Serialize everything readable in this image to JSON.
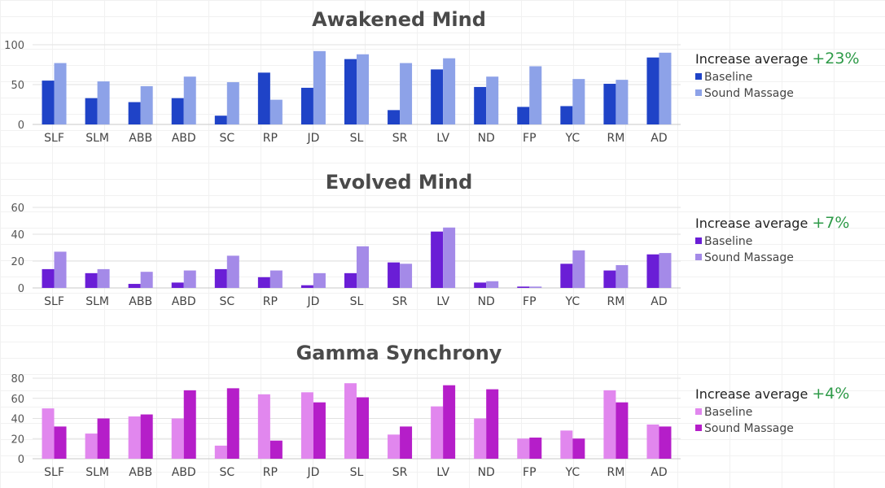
{
  "chart_data": [
    {
      "type": "bar",
      "title": "Awakened Mind",
      "categories": [
        "SLF",
        "SLM",
        "ABB",
        "ABD",
        "SC",
        "RP",
        "JD",
        "SL",
        "SR",
        "LV",
        "ND",
        "FP",
        "YC",
        "RM",
        "AD"
      ],
      "yticks": [
        0,
        50,
        100
      ],
      "ylim": [
        0,
        100
      ],
      "grid": true,
      "legend_position": "right",
      "series": [
        {
          "name": "Baseline",
          "color": "#1f43c7",
          "values": [
            55,
            33,
            28,
            33,
            11,
            65,
            46,
            82,
            18,
            69,
            47,
            22,
            23,
            51,
            84
          ]
        },
        {
          "name": "Sound Massage",
          "color": "#8da2e8",
          "values": [
            77,
            54,
            48,
            60,
            53,
            31,
            92,
            88,
            77,
            83,
            60,
            73,
            57,
            56,
            90
          ]
        }
      ],
      "annotation": {
        "label": "Increase average",
        "value": "+23%"
      }
    },
    {
      "type": "bar",
      "title": "Evolved Mind",
      "categories": [
        "SLF",
        "SLM",
        "ABB",
        "ABD",
        "SC",
        "RP",
        "JD",
        "SL",
        "SR",
        "LV",
        "ND",
        "FP",
        "YC",
        "RM",
        "AD"
      ],
      "yticks": [
        0,
        20,
        40,
        60
      ],
      "ylim": [
        0,
        60
      ],
      "grid": true,
      "legend_position": "right",
      "series": [
        {
          "name": "Baseline",
          "color": "#6a1ed6",
          "values": [
            14,
            11,
            3,
            4,
            14,
            8,
            2,
            11,
            19,
            42,
            4,
            1,
            18,
            13,
            25
          ]
        },
        {
          "name": "Sound Massage",
          "color": "#a48ae8",
          "values": [
            27,
            14,
            12,
            13,
            24,
            13,
            11,
            31,
            18,
            45,
            5,
            1,
            28,
            17,
            26
          ]
        }
      ],
      "annotation": {
        "label": "Increase average",
        "value": "+7%"
      }
    },
    {
      "type": "bar",
      "title": "Gamma Synchrony",
      "categories": [
        "SLF",
        "SLM",
        "ABB",
        "ABD",
        "SC",
        "RP",
        "JD",
        "SL",
        "SR",
        "LV",
        "ND",
        "FP",
        "YC",
        "RM",
        "AD"
      ],
      "yticks": [
        0,
        20,
        40,
        60,
        80
      ],
      "ylim": [
        0,
        80
      ],
      "grid": true,
      "legend_position": "right",
      "series": [
        {
          "name": "Baseline",
          "color": "#e187ee",
          "values": [
            50,
            25,
            42,
            40,
            13,
            64,
            66,
            75,
            24,
            52,
            40,
            20,
            28,
            68,
            34
          ]
        },
        {
          "name": "Sound Massage",
          "color": "#b51ec9",
          "values": [
            32,
            40,
            44,
            68,
            70,
            18,
            56,
            61,
            32,
            73,
            69,
            21,
            20,
            56,
            32
          ]
        }
      ],
      "annotation": {
        "label": "Increase average",
        "value": "+4%"
      }
    }
  ]
}
